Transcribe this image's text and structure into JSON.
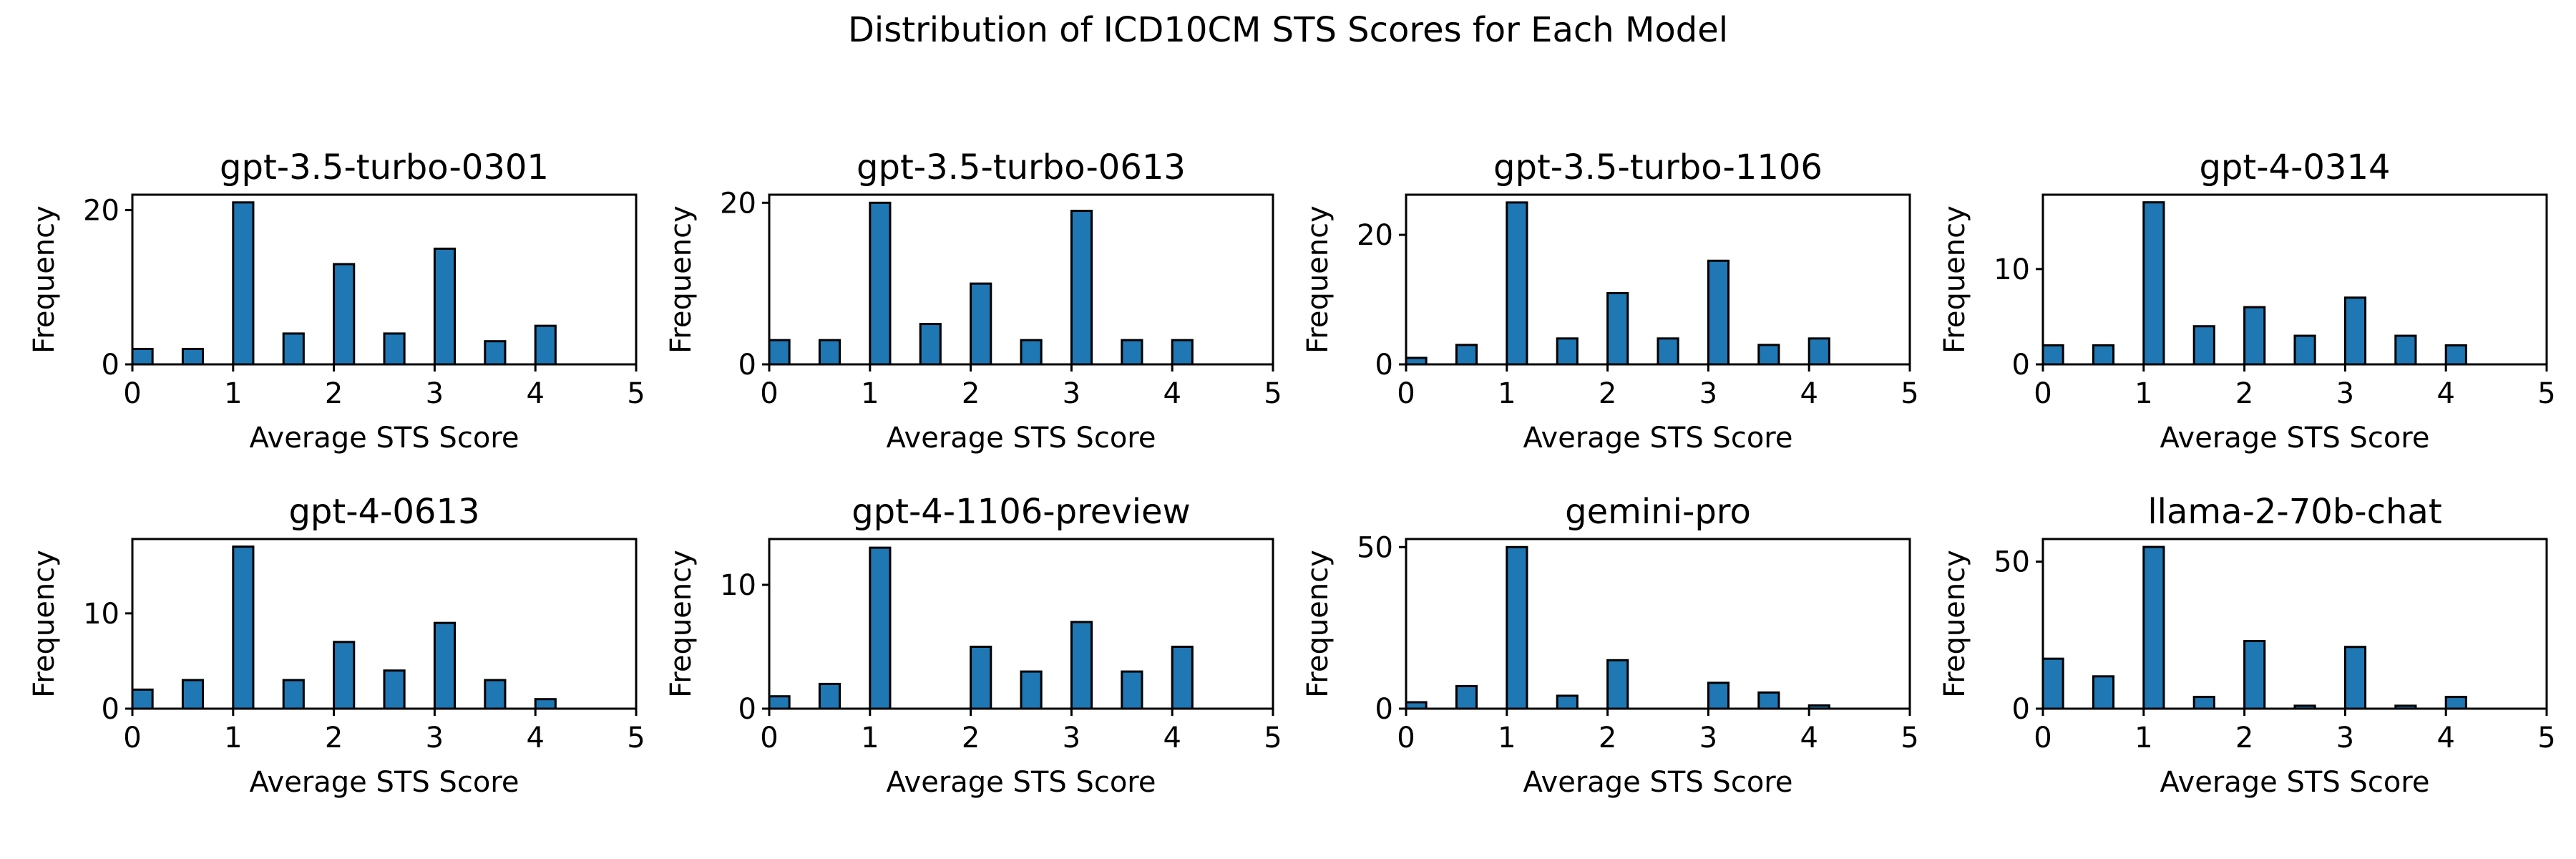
{
  "title": "Distribution of ICD10CM STS Scores for Each Model",
  "chart_data": {
    "type": "bar",
    "title": "Distribution of ICD10CM STS Scores for Each Model",
    "xlabel": "Average STS Score",
    "ylabel": "Frequency",
    "bar_color": "#1f77b4",
    "edge_color": "#000000",
    "grid": false,
    "xlim": [
      0,
      5
    ],
    "xticks": [
      0,
      1,
      2,
      3,
      4,
      5
    ],
    "bin_width": 0.2,
    "x": [
      0,
      0.5,
      1,
      1.5,
      2,
      2.5,
      3,
      3.5,
      4
    ],
    "panels": [
      {
        "name": "gpt-3.5-turbo-0301",
        "values": [
          2,
          2,
          21,
          4,
          13,
          4,
          15,
          3,
          5
        ],
        "ylim": [
          0,
          22
        ],
        "yticks": [
          0,
          20
        ]
      },
      {
        "name": "gpt-3.5-turbo-0613",
        "values": [
          3,
          3,
          20,
          5,
          10,
          3,
          19,
          3,
          3
        ],
        "ylim": [
          0,
          21
        ],
        "yticks": [
          0,
          20
        ]
      },
      {
        "name": "gpt-3.5-turbo-1106",
        "values": [
          1,
          3,
          25,
          4,
          11,
          4,
          16,
          3,
          4
        ],
        "ylim": [
          0,
          26.2
        ],
        "yticks": [
          0,
          20
        ]
      },
      {
        "name": "gpt-4-0314",
        "values": [
          2,
          2,
          17,
          4,
          6,
          3,
          7,
          3,
          2
        ],
        "ylim": [
          0,
          17.8
        ],
        "yticks": [
          0,
          10
        ]
      },
      {
        "name": "gpt-4-0613",
        "values": [
          2,
          3,
          17,
          3,
          7,
          4,
          9,
          3,
          1
        ],
        "ylim": [
          0,
          17.8
        ],
        "yticks": [
          0,
          10
        ]
      },
      {
        "name": "gpt-4-1106-preview",
        "values": [
          1,
          2,
          13,
          0,
          5,
          3,
          7,
          3,
          5
        ],
        "ylim": [
          0,
          13.7
        ],
        "yticks": [
          0,
          10
        ]
      },
      {
        "name": "gemini-pro",
        "values": [
          2,
          7,
          50,
          4,
          15,
          0,
          8,
          5,
          1
        ],
        "ylim": [
          0,
          52.5
        ],
        "yticks": [
          0,
          50
        ]
      },
      {
        "name": "llama-2-70b-chat",
        "values": [
          17,
          11,
          55,
          4,
          23,
          1,
          21,
          1,
          4
        ],
        "ylim": [
          0,
          57.7
        ],
        "yticks": [
          0,
          50
        ]
      }
    ]
  }
}
